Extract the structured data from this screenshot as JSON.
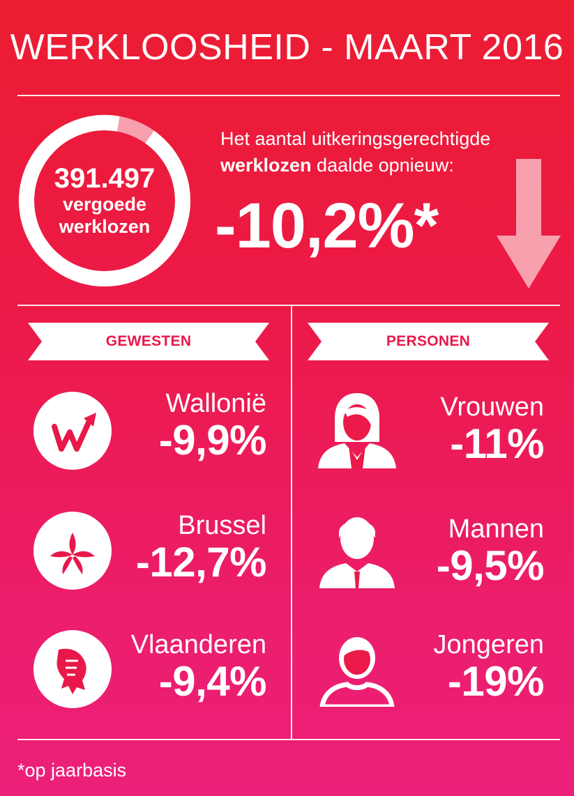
{
  "title": "WERKLOOSHEID - MAART 2016",
  "summary": {
    "count": "391.497",
    "count_label_1": "vergoede",
    "count_label_2": "werklozen",
    "ring_fraction": 0.93,
    "intro_line_1": "Het aantal uitkeringsgerechtigde",
    "intro_bold": "werklozen",
    "intro_rest": " daalde opnieuw:",
    "change": "-10,2%*"
  },
  "gewesten": {
    "header": "GEWESTEN",
    "items": [
      {
        "label": "Wallonië",
        "value": "-9,9%",
        "icon": "wallonia-icon"
      },
      {
        "label": "Brussel",
        "value": "-12,7%",
        "icon": "brussels-iris-icon"
      },
      {
        "label": "Vlaanderen",
        "value": "-9,4%",
        "icon": "flemish-lion-icon"
      }
    ]
  },
  "personen": {
    "header": "PERSONEN",
    "items": [
      {
        "label": "Vrouwen",
        "value": "-11%",
        "icon": "woman-icon"
      },
      {
        "label": "Mannen",
        "value": "-9,5%",
        "icon": "man-icon"
      },
      {
        "label": "Jongeren",
        "value": "-19%",
        "icon": "young-person-icon"
      }
    ]
  },
  "footnote": "*op jaarbasis",
  "colors": {
    "background_top": "#ec1c31",
    "background_bottom": "#ec207a",
    "accent_pink": "#f7a0ae",
    "label_red": "#e8184a",
    "white": "#ffffff"
  }
}
